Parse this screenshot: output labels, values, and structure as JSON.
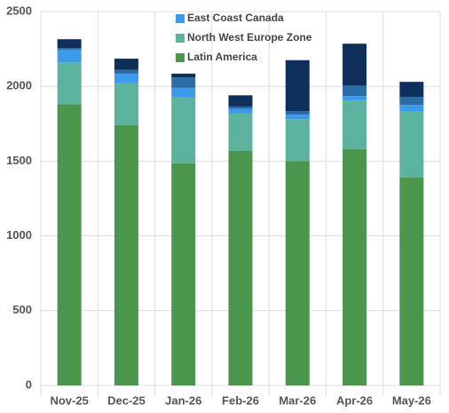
{
  "chart_data": {
    "type": "stacked-bar",
    "categories": [
      "Nov-25",
      "Dec-25",
      "Jan-26",
      "Feb-26",
      "Mar-26",
      "Apr-26",
      "May-26"
    ],
    "series": [
      {
        "name": "Latin America",
        "color": "#4b964d",
        "values": [
          1880,
          1740,
          1485,
          1570,
          1500,
          1580,
          1390
        ]
      },
      {
        "name": "North West Europe Zone",
        "color": "#5cb39d",
        "values": [
          280,
          285,
          440,
          250,
          280,
          325,
          440
        ]
      },
      {
        "name": "East Coast Canada",
        "color": "#3b9be9",
        "values": [
          85,
          60,
          65,
          30,
          30,
          30,
          45
        ]
      },
      {
        "name": null,
        "color": "#2a6ca3",
        "values": [
          10,
          25,
          70,
          15,
          25,
          70,
          55
        ]
      },
      {
        "name": null,
        "color": "#0f2f5b",
        "values": [
          60,
          75,
          25,
          75,
          340,
          280,
          100
        ]
      }
    ],
    "ylim": [
      0,
      2500
    ],
    "yticks": [
      0,
      500,
      1000,
      1500,
      2000,
      2500
    ],
    "grid": true
  }
}
